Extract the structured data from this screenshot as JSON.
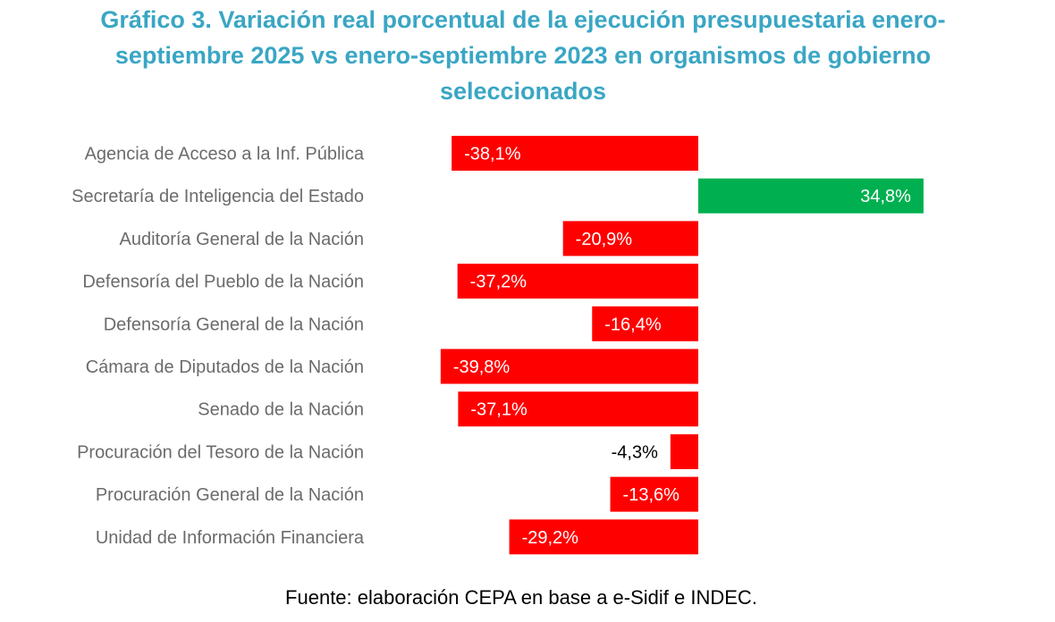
{
  "title_lines": [
    "Gráfico 3. Variación real porcentual de la ejecución presupuestaria enero-",
    "septiembre 2025 vs enero-septiembre 2023 en organismos de gobierno",
    "seleccionados"
  ],
  "source": "Fuente: elaboración CEPA en base a e-Sidif e INDEC.",
  "colors": {
    "title": "#3aa6c4",
    "negative": "#ff0000",
    "positive": "#00b050",
    "category_label": "#6b6b6b",
    "data_label_inside": "#ffffff",
    "data_label_outside": "#000000"
  },
  "chart_data": {
    "type": "bar",
    "orientation": "horizontal",
    "categories": [
      "Agencia de Acceso a la Inf. Pública",
      "Secretaría de Inteligencia del Estado",
      "Auditoría General de la Nación",
      "Defensoría del Pueblo de la Nación",
      "Defensoría General de la Nación",
      "Cámara de Diputados de la Nación",
      "Senado de la Nación",
      "Procuración del Tesoro de la Nación",
      "Procuración General de la Nación",
      "Unidad de Información Financiera"
    ],
    "values": [
      -38.1,
      34.8,
      -20.9,
      -37.2,
      -16.4,
      -39.8,
      -37.1,
      -4.3,
      -13.6,
      -29.2
    ],
    "labels": [
      "-38,1%",
      "34,8%",
      "-20,9%",
      "-37,2%",
      "-16,4%",
      "-39,8%",
      "-37,1%",
      "-4,3%",
      "-13,6%",
      "-29,2%"
    ],
    "title": "Gráfico 3. Variación real porcentual de la ejecución presupuestaria enero-septiembre 2025 vs enero-septiembre 2023 en organismos de gobierno seleccionados",
    "xlabel": "",
    "ylabel": "",
    "xlim": [
      -40,
      35
    ],
    "grid": false,
    "legend": "none"
  }
}
